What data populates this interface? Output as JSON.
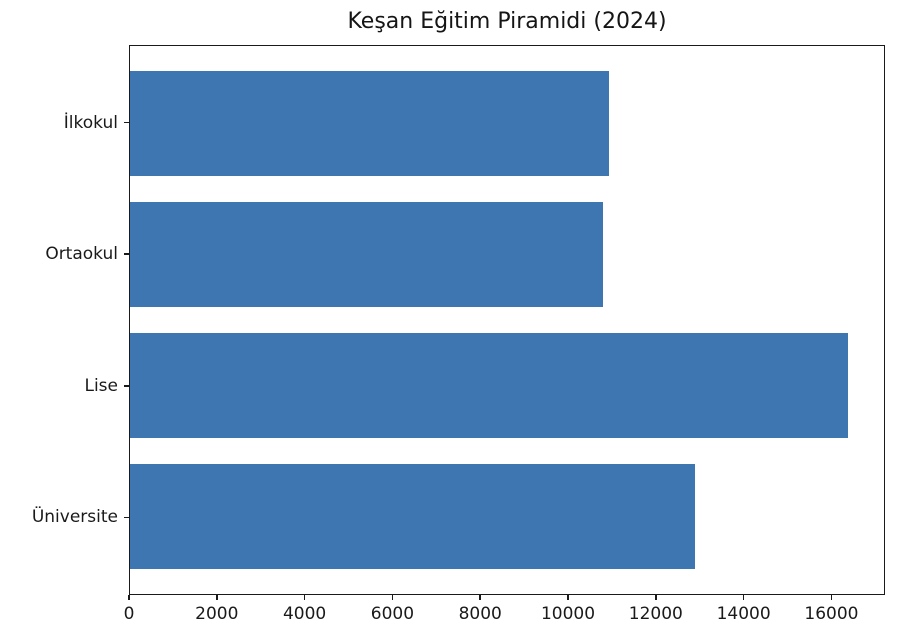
{
  "figure": {
    "background": "#ffffff",
    "spine_color": "#1a1a1a"
  },
  "chart_data": {
    "type": "bar",
    "orientation": "horizontal",
    "title": "Keşan Eğitim Piramidi (2024)",
    "categories": [
      "İlkokul",
      "Ortaokul",
      "Lise",
      "Üniversite"
    ],
    "values": [
      10950,
      10800,
      16400,
      12900
    ],
    "bar_color": "#3d76b0",
    "xlabel": "",
    "ylabel": "",
    "xlim": [
      0,
      17220
    ],
    "xticks": [
      0,
      2000,
      4000,
      6000,
      8000,
      10000,
      12000,
      14000,
      16000
    ],
    "bar_height_fraction": 0.8,
    "grid": false,
    "legend_position": "none"
  }
}
